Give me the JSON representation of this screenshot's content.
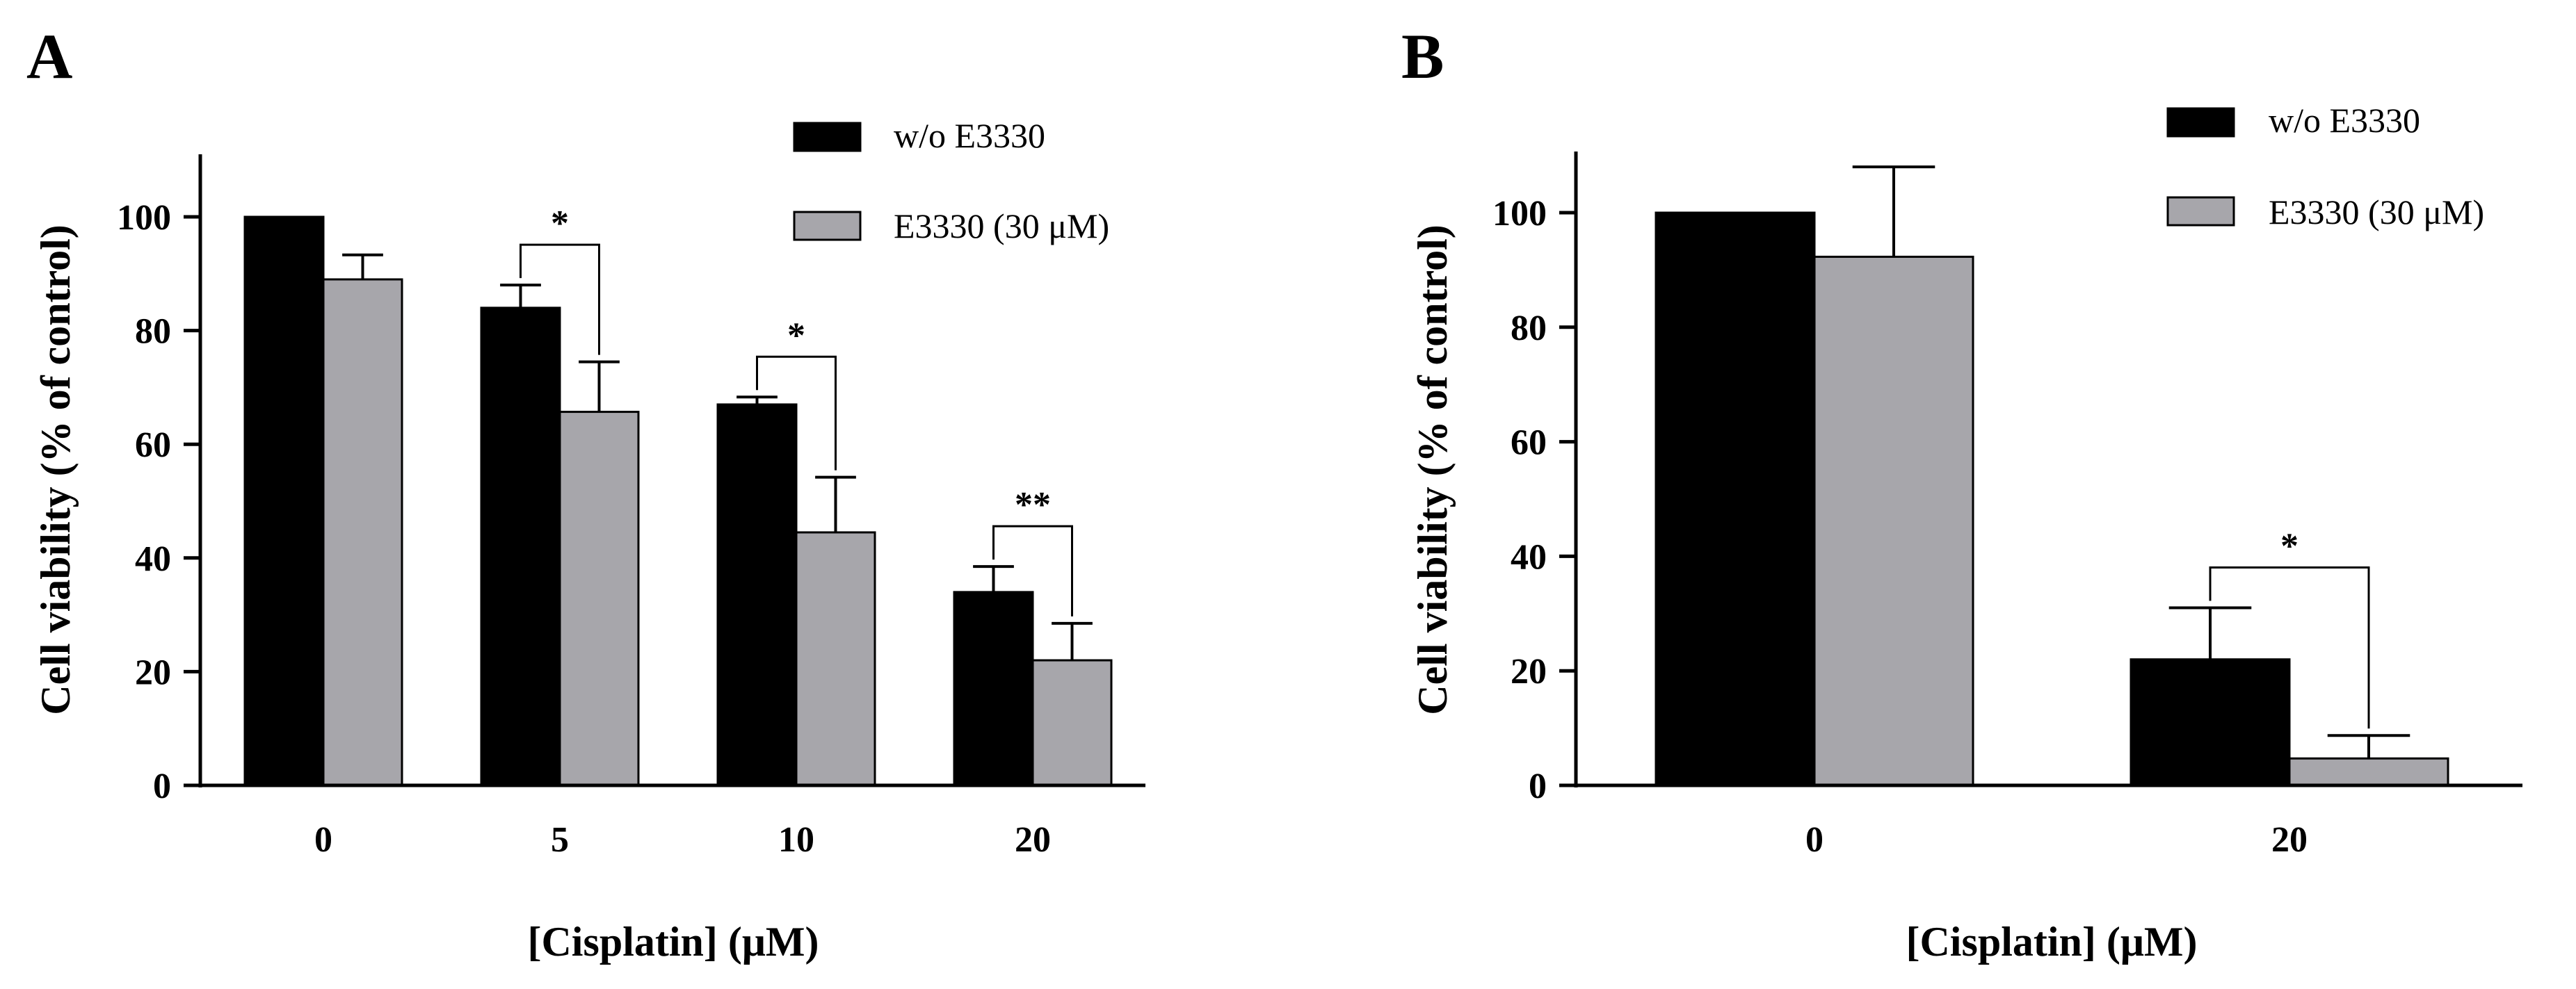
{
  "chart_data": [
    {
      "panel": "A",
      "type": "bar",
      "categories": [
        "0",
        "5",
        "10",
        "20"
      ],
      "series": [
        {
          "name": "w/o E3330",
          "color": "#000000",
          "values": [
            100,
            84,
            67,
            34
          ],
          "errors": [
            0,
            4,
            1.3,
            4.5
          ]
        },
        {
          "name": "E3330 (30 μM)",
          "color": "#A7A6AB",
          "values": [
            89,
            65.7,
            44.5,
            22
          ],
          "errors": [
            4.3,
            8.8,
            9.7,
            6.5
          ]
        }
      ],
      "yticks": [
        "0",
        "20",
        "40",
        "60",
        "80",
        "100"
      ],
      "ylim": [
        0,
        110
      ],
      "ylabel": "Cell viability (% of control)",
      "xlabel": "[Cisplatin] (μM)",
      "legend_position": "top-right",
      "significance": [
        {
          "category_index": 1,
          "label": "*"
        },
        {
          "category_index": 2,
          "label": "*"
        },
        {
          "category_index": 3,
          "label": "**"
        }
      ]
    },
    {
      "panel": "B",
      "type": "bar",
      "categories": [
        "0",
        "20"
      ],
      "series": [
        {
          "name": "w/o E3330",
          "color": "#000000",
          "values": [
            100,
            22
          ],
          "errors": [
            0,
            9
          ]
        },
        {
          "name": "E3330 (30 μM)",
          "color": "#A7A6AB",
          "values": [
            92.3,
            4.7
          ],
          "errors": [
            15.7,
            4
          ]
        }
      ],
      "yticks": [
        "0",
        "20",
        "40",
        "60",
        "80",
        "100"
      ],
      "ylim": [
        0,
        110
      ],
      "ylabel": "Cell viability (% of control)",
      "xlabel": "[Cisplatin] (μM)",
      "legend_position": "top-right",
      "significance": [
        {
          "category_index": 1,
          "label": "*"
        }
      ]
    }
  ]
}
